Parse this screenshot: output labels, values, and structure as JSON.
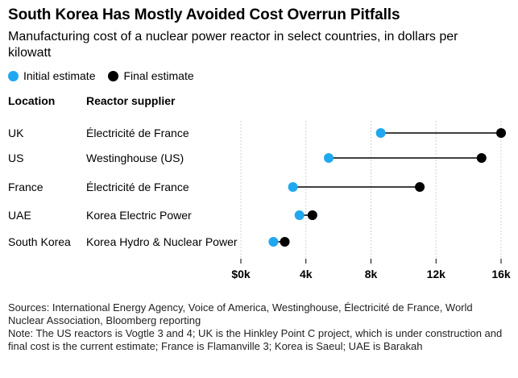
{
  "title": "South Korea Has Mostly Avoided Cost Overrun Pitfalls",
  "subtitle": "Manufacturing cost of a nuclear power reactor in select countries, in dollars per kilowatt",
  "legend": {
    "initial": "Initial estimate",
    "final": "Final estimate"
  },
  "colors": {
    "initial": "#1fa8f0",
    "final": "#000000",
    "connector": "#000000",
    "grid": "#d0d0d0"
  },
  "table_headers": {
    "location": "Location",
    "supplier": "Reactor supplier"
  },
  "chart_data": {
    "type": "dumbbell",
    "title": "South Korea Has Mostly Avoided Cost Overrun Pitfalls",
    "subtitle": "Manufacturing cost of a nuclear power reactor in select countries, in dollars per kilowatt",
    "xlim": [
      0,
      16000
    ],
    "x_ticks": [
      {
        "value": 0,
        "label": "$0k"
      },
      {
        "value": 4000,
        "label": "4k"
      },
      {
        "value": 8000,
        "label": "8k"
      },
      {
        "value": 12000,
        "label": "12k"
      },
      {
        "value": 16000,
        "label": "16k"
      }
    ],
    "legend_position": "top-left",
    "series": [
      {
        "name": "Initial estimate",
        "key": "initial"
      },
      {
        "name": "Final estimate",
        "key": "final"
      }
    ],
    "rows": [
      {
        "location": "UK",
        "supplier": "Électricité de France",
        "initial": 8600,
        "final": 16000
      },
      {
        "location": "US",
        "supplier": "Westinghouse (US)",
        "initial": 5400,
        "final": 14800
      },
      {
        "location": "France",
        "supplier": "Électricité de France",
        "initial": 3200,
        "final": 11000
      },
      {
        "location": "UAE",
        "supplier": "Korea Electric Power",
        "initial": 3600,
        "final": 4400
      },
      {
        "location": "South Korea",
        "supplier": "Korea Hydro & Nuclear Power",
        "initial": 2000,
        "final": 2700
      }
    ]
  },
  "notes": {
    "sources": "Sources: International Energy Agency, Voice of America, Westinghouse, Électricité de France, World Nuclear Association, Bloomberg reporting",
    "note": "Note: The US reactors is Vogtle 3 and 4; UK is the Hinkley Point C project, which is under construction and final cost is the current estimate; France is Flamanville 3; Korea is Saeul; UAE is Barakah"
  }
}
